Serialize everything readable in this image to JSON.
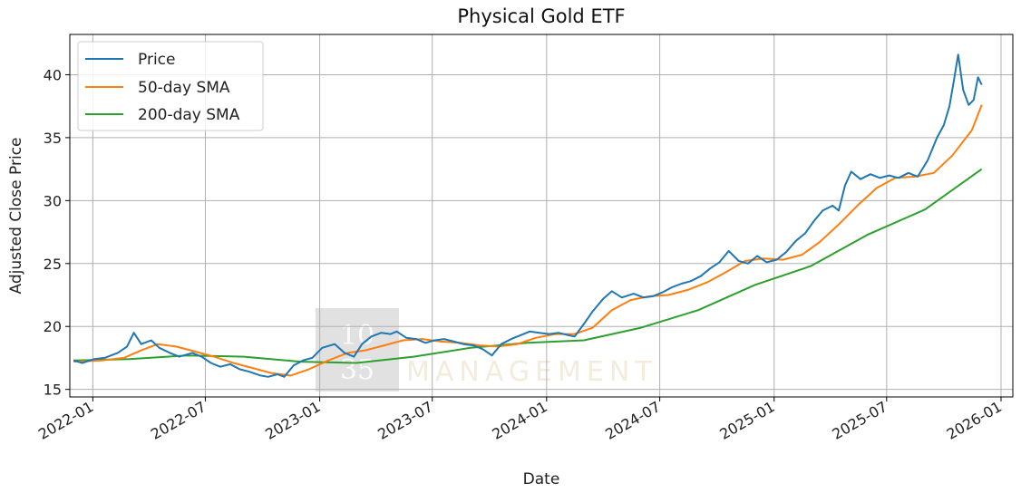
{
  "chart_data": {
    "type": "line",
    "title": "Physical Gold ETF",
    "xlabel": "Date",
    "ylabel": "Adjusted Close Price",
    "x_range": [
      "2021-11-25",
      "2026-01-20"
    ],
    "ylim": [
      14.4,
      43.2
    ],
    "yticks": [
      15,
      20,
      25,
      30,
      35,
      40
    ],
    "xticks": [
      "2022-01",
      "2022-07",
      "2023-01",
      "2023-07",
      "2024-01",
      "2024-07",
      "2025-01",
      "2025-07",
      "2026-01"
    ],
    "grid": true,
    "legend_position": "top-left",
    "watermark": {
      "number_top": "10",
      "number_bottom": "35",
      "text": "MANAGEMENT"
    },
    "series": [
      {
        "name": "Price",
        "color": "#1f77b4",
        "x": [
          "2021-12-01",
          "2021-12-15",
          "2022-01-03",
          "2022-01-20",
          "2022-02-10",
          "2022-02-25",
          "2022-03-08",
          "2022-03-20",
          "2022-04-05",
          "2022-04-18",
          "2022-05-05",
          "2022-05-20",
          "2022-06-10",
          "2022-06-25",
          "2022-07-10",
          "2022-07-25",
          "2022-08-10",
          "2022-08-25",
          "2022-09-10",
          "2022-09-28",
          "2022-10-10",
          "2022-10-25",
          "2022-11-05",
          "2022-11-20",
          "2022-12-05",
          "2022-12-20",
          "2023-01-05",
          "2023-01-25",
          "2023-02-10",
          "2023-02-25",
          "2023-03-10",
          "2023-03-25",
          "2023-04-10",
          "2023-04-25",
          "2023-05-05",
          "2023-05-20",
          "2023-06-05",
          "2023-06-20",
          "2023-07-05",
          "2023-07-20",
          "2023-08-05",
          "2023-08-20",
          "2023-09-05",
          "2023-09-20",
          "2023-10-05",
          "2023-10-20",
          "2023-11-05",
          "2023-11-20",
          "2023-12-05",
          "2023-12-20",
          "2024-01-05",
          "2024-01-20",
          "2024-02-05",
          "2024-02-15",
          "2024-03-01",
          "2024-03-15",
          "2024-04-01",
          "2024-04-15",
          "2024-05-01",
          "2024-05-20",
          "2024-06-05",
          "2024-06-20",
          "2024-07-05",
          "2024-07-20",
          "2024-08-05",
          "2024-08-20",
          "2024-09-05",
          "2024-09-20",
          "2024-10-05",
          "2024-10-20",
          "2024-11-05",
          "2024-11-20",
          "2024-12-05",
          "2024-12-20",
          "2025-01-05",
          "2025-01-20",
          "2025-02-05",
          "2025-02-20",
          "2025-03-05",
          "2025-03-20",
          "2025-04-05",
          "2025-04-15",
          "2025-04-25",
          "2025-05-05",
          "2025-05-20",
          "2025-06-05",
          "2025-06-20",
          "2025-07-05",
          "2025-07-20",
          "2025-08-05",
          "2025-08-20",
          "2025-09-05",
          "2025-09-20",
          "2025-10-01",
          "2025-10-10",
          "2025-10-17",
          "2025-10-24",
          "2025-11-01",
          "2025-11-10",
          "2025-11-18",
          "2025-11-25",
          "2025-12-01"
        ],
        "y": [
          17.3,
          17.1,
          17.4,
          17.5,
          17.9,
          18.4,
          19.5,
          18.6,
          18.9,
          18.3,
          17.9,
          17.6,
          17.9,
          17.6,
          17.1,
          16.8,
          17.0,
          16.6,
          16.4,
          16.1,
          16.0,
          16.2,
          16.0,
          16.9,
          17.3,
          17.5,
          18.3,
          18.6,
          17.9,
          17.6,
          18.6,
          19.2,
          19.5,
          19.4,
          19.6,
          19.1,
          19.0,
          18.7,
          18.9,
          19.0,
          18.8,
          18.6,
          18.5,
          18.2,
          17.7,
          18.6,
          19.0,
          19.3,
          19.6,
          19.5,
          19.4,
          19.5,
          19.3,
          19.2,
          20.2,
          21.2,
          22.2,
          22.8,
          22.3,
          22.6,
          22.3,
          22.4,
          22.7,
          23.1,
          23.4,
          23.6,
          24.0,
          24.6,
          25.1,
          26.0,
          25.2,
          25.0,
          25.6,
          25.1,
          25.3,
          25.9,
          26.8,
          27.4,
          28.3,
          29.2,
          29.6,
          29.2,
          31.2,
          32.3,
          31.7,
          32.1,
          31.8,
          32.0,
          31.8,
          32.2,
          31.9,
          33.2,
          35.0,
          36.0,
          37.5,
          39.5,
          41.6,
          38.8,
          37.6,
          38.0,
          39.8,
          39.2
        ]
      },
      {
        "name": "50-day SMA",
        "color": "#ff7f0e",
        "x": [
          "2021-12-01",
          "2022-01-15",
          "2022-02-20",
          "2022-03-20",
          "2022-04-15",
          "2022-05-15",
          "2022-06-15",
          "2022-07-15",
          "2022-08-15",
          "2022-09-15",
          "2022-10-15",
          "2022-11-15",
          "2022-12-15",
          "2023-01-15",
          "2023-02-15",
          "2023-03-15",
          "2023-04-15",
          "2023-05-15",
          "2023-06-15",
          "2023-07-15",
          "2023-08-15",
          "2023-09-15",
          "2023-10-15",
          "2023-11-15",
          "2023-12-15",
          "2024-01-15",
          "2024-02-15",
          "2024-03-15",
          "2024-04-15",
          "2024-05-15",
          "2024-06-15",
          "2024-07-15",
          "2024-08-15",
          "2024-09-15",
          "2024-10-15",
          "2024-11-15",
          "2024-12-15",
          "2025-01-15",
          "2025-02-15",
          "2025-03-15",
          "2025-04-15",
          "2025-05-15",
          "2025-06-15",
          "2025-07-15",
          "2025-08-15",
          "2025-09-15",
          "2025-10-15",
          "2025-11-15",
          "2025-12-01"
        ],
        "y": [
          17.2,
          17.3,
          17.5,
          18.1,
          18.6,
          18.4,
          18.0,
          17.6,
          17.1,
          16.7,
          16.3,
          16.1,
          16.6,
          17.3,
          17.9,
          18.1,
          18.5,
          18.9,
          19.0,
          18.8,
          18.7,
          18.5,
          18.4,
          18.6,
          19.1,
          19.4,
          19.4,
          19.9,
          21.3,
          22.1,
          22.4,
          22.5,
          22.9,
          23.5,
          24.3,
          25.2,
          25.4,
          25.3,
          25.7,
          26.7,
          28.1,
          29.6,
          31.0,
          31.8,
          31.9,
          32.2,
          33.6,
          35.6,
          37.6
        ]
      },
      {
        "name": "200-day SMA",
        "color": "#2ca02c",
        "x": [
          "2021-12-01",
          "2022-03-01",
          "2022-06-01",
          "2022-09-01",
          "2022-12-01",
          "2023-03-01",
          "2023-06-01",
          "2023-09-01",
          "2023-12-01",
          "2024-03-01",
          "2024-06-01",
          "2024-09-01",
          "2024-12-01",
          "2025-03-01",
          "2025-06-01",
          "2025-09-01",
          "2025-12-01"
        ],
        "y": [
          17.3,
          17.4,
          17.7,
          17.6,
          17.2,
          17.1,
          17.6,
          18.3,
          18.7,
          18.9,
          19.9,
          21.3,
          23.3,
          24.8,
          27.3,
          29.3,
          32.5
        ]
      }
    ]
  }
}
